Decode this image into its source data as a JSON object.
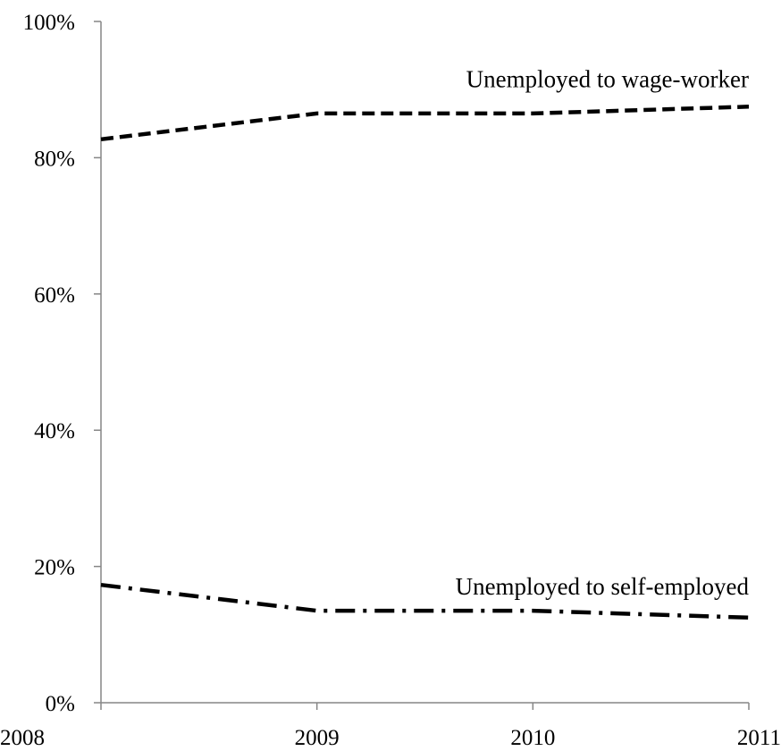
{
  "chart_data": {
    "type": "line",
    "x": [
      2008,
      2009,
      2010,
      2011
    ],
    "x_tick_labels": [
      "2008",
      "2009",
      "2010",
      "2011"
    ],
    "xlim": [
      2008,
      2011
    ],
    "ylim": [
      0,
      100
    ],
    "y_ticks": [
      0,
      20,
      40,
      60,
      80,
      100
    ],
    "y_tick_labels": [
      "0%",
      "20%",
      "40%",
      "60%",
      "80%",
      "100%"
    ],
    "grid": false,
    "title": "",
    "xlabel": "",
    "ylabel": "",
    "series": [
      {
        "name": "Unemployed to wage-worker",
        "values": [
          82.7,
          86.5,
          86.5,
          87.5
        ],
        "line_style": "dashed",
        "color": "#000000"
      },
      {
        "name": "Unemployed to self-employed",
        "values": [
          17.3,
          13.5,
          13.5,
          12.5
        ],
        "line_style": "dash-dot",
        "color": "#000000"
      }
    ],
    "legend": "inline labels above lines, right side"
  }
}
